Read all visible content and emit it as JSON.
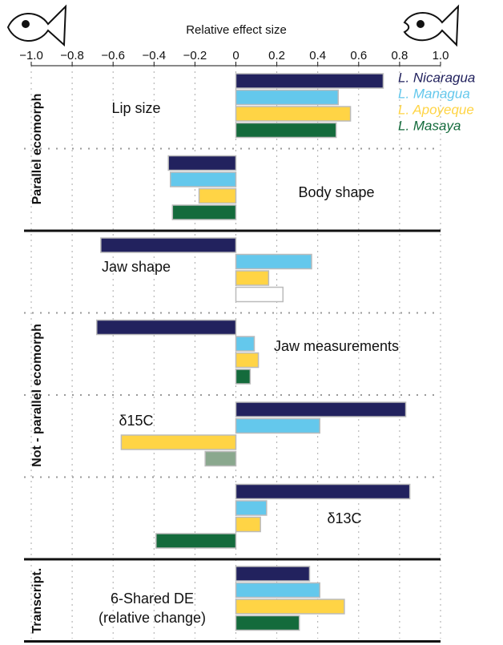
{
  "chart_data": {
    "type": "bar",
    "orientation": "horizontal",
    "title": "Relative effect size",
    "sections": [
      {
        "label": "Parallel ecomorph",
        "categories": [
          "Lip size",
          "Body shape"
        ]
      },
      {
        "label": "Not - parallel ecomorph",
        "categories": [
          "Jaw shape",
          "Jaw measurements",
          "δ15C",
          "δ13C"
        ]
      },
      {
        "label": "Transcript.",
        "categories": [
          "6-Shared DE (relative change)"
        ]
      }
    ],
    "series": [
      {
        "name": "L. Nicaragua",
        "color": "#22225e",
        "values": [
          0.72,
          -0.33,
          -0.66,
          -0.68,
          0.83,
          0.85,
          0.36
        ]
      },
      {
        "name": "L. Managua",
        "color": "#64c8ec",
        "values": [
          0.5,
          -0.32,
          0.37,
          0.09,
          0.41,
          0.15,
          0.41
        ]
      },
      {
        "name": "L. Apoyeque",
        "color": "#ffd445",
        "values": [
          0.56,
          -0.18,
          0.16,
          0.11,
          -0.56,
          0.12,
          0.53
        ]
      },
      {
        "name": "L. Masaya",
        "color": "#146b3c",
        "values": [
          0.49,
          -0.31,
          0.23,
          0.07,
          -0.15,
          -0.39,
          0.31
        ],
        "colors": [
          "#146b3c",
          "#146b3c",
          "#ffffff",
          "#146b3c",
          "#8aa88e",
          "#146b3c",
          "#146b3c"
        ]
      }
    ],
    "xlim": [
      -1.0,
      1.0
    ],
    "xticks": [
      {
        "value": -1.0,
        "label": "−1.0"
      },
      {
        "value": -0.8,
        "label": "−0.8"
      },
      {
        "value": -0.6,
        "label": "−0.6"
      },
      {
        "value": -0.4,
        "label": "−0.4"
      },
      {
        "value": -0.2,
        "label": "−0.2"
      },
      0,
      0.2,
      0.4,
      0.6,
      0.8,
      {
        "value": 1.0,
        "label": "1.0"
      }
    ],
    "grid": true,
    "legend": "top-right"
  }
}
